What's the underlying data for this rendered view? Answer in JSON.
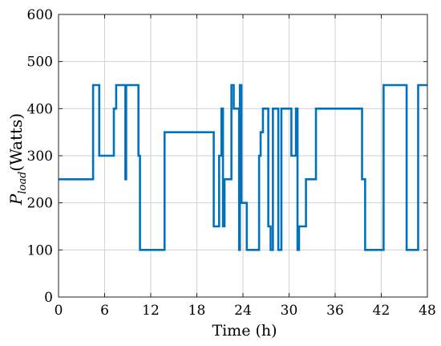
{
  "chart_data": {
    "type": "line",
    "xlabel": "Time (h)",
    "ylabel_main": "P",
    "ylabel_sub": "load",
    "ylabel_rest": "(Watts)",
    "xlim": [
      0,
      48
    ],
    "ylim": [
      0,
      600
    ],
    "xticks": [
      0,
      6,
      12,
      18,
      24,
      30,
      36,
      42,
      48
    ],
    "yticks": [
      0,
      100,
      200,
      300,
      400,
      500,
      600
    ],
    "grid": true,
    "series": [
      {
        "color": "#0072bd",
        "x": [
          0,
          4.5,
          4.5,
          5.3,
          5.3,
          7.2,
          7.2,
          7.5,
          7.5,
          8.7,
          8.7,
          8.8,
          8.8,
          10.4,
          10.4,
          10.6,
          10.6,
          13.8,
          13.8,
          20.2,
          20.2,
          20.9,
          20.9,
          21.2,
          21.2,
          21.4,
          21.4,
          21.6,
          21.6,
          22.5,
          22.5,
          22.8,
          22.8,
          23.5,
          23.5,
          23.6,
          23.6,
          23.8,
          23.8,
          24.5,
          24.5,
          26.1,
          26.1,
          26.3,
          26.3,
          26.6,
          26.6,
          27.3,
          27.3,
          27.6,
          27.6,
          27.9,
          27.9,
          28.6,
          28.6,
          29.0,
          29.0,
          30.3,
          30.3,
          30.9,
          30.9,
          31.1,
          31.1,
          31.3,
          31.3,
          32.2,
          32.2,
          33.5,
          33.5,
          34.0,
          34.0,
          39.5,
          39.5,
          39.9,
          39.9,
          42.3,
          42.3,
          45.3,
          45.3,
          46.8,
          46.8,
          48.0
        ],
        "y": [
          250,
          250,
          450,
          450,
          300,
          300,
          400,
          400,
          450,
          450,
          250,
          250,
          450,
          450,
          300,
          300,
          100,
          100,
          350,
          350,
          150,
          150,
          300,
          300,
          400,
          400,
          150,
          150,
          250,
          250,
          450,
          450,
          400,
          400,
          100,
          100,
          450,
          450,
          200,
          200,
          100,
          100,
          300,
          300,
          350,
          350,
          400,
          400,
          150,
          150,
          100,
          100,
          400,
          400,
          100,
          100,
          400,
          400,
          300,
          300,
          400,
          400,
          100,
          100,
          150,
          150,
          250,
          250,
          400,
          400,
          400,
          400,
          250,
          250,
          100,
          100,
          450,
          450,
          100,
          100,
          450,
          450
        ]
      }
    ]
  }
}
